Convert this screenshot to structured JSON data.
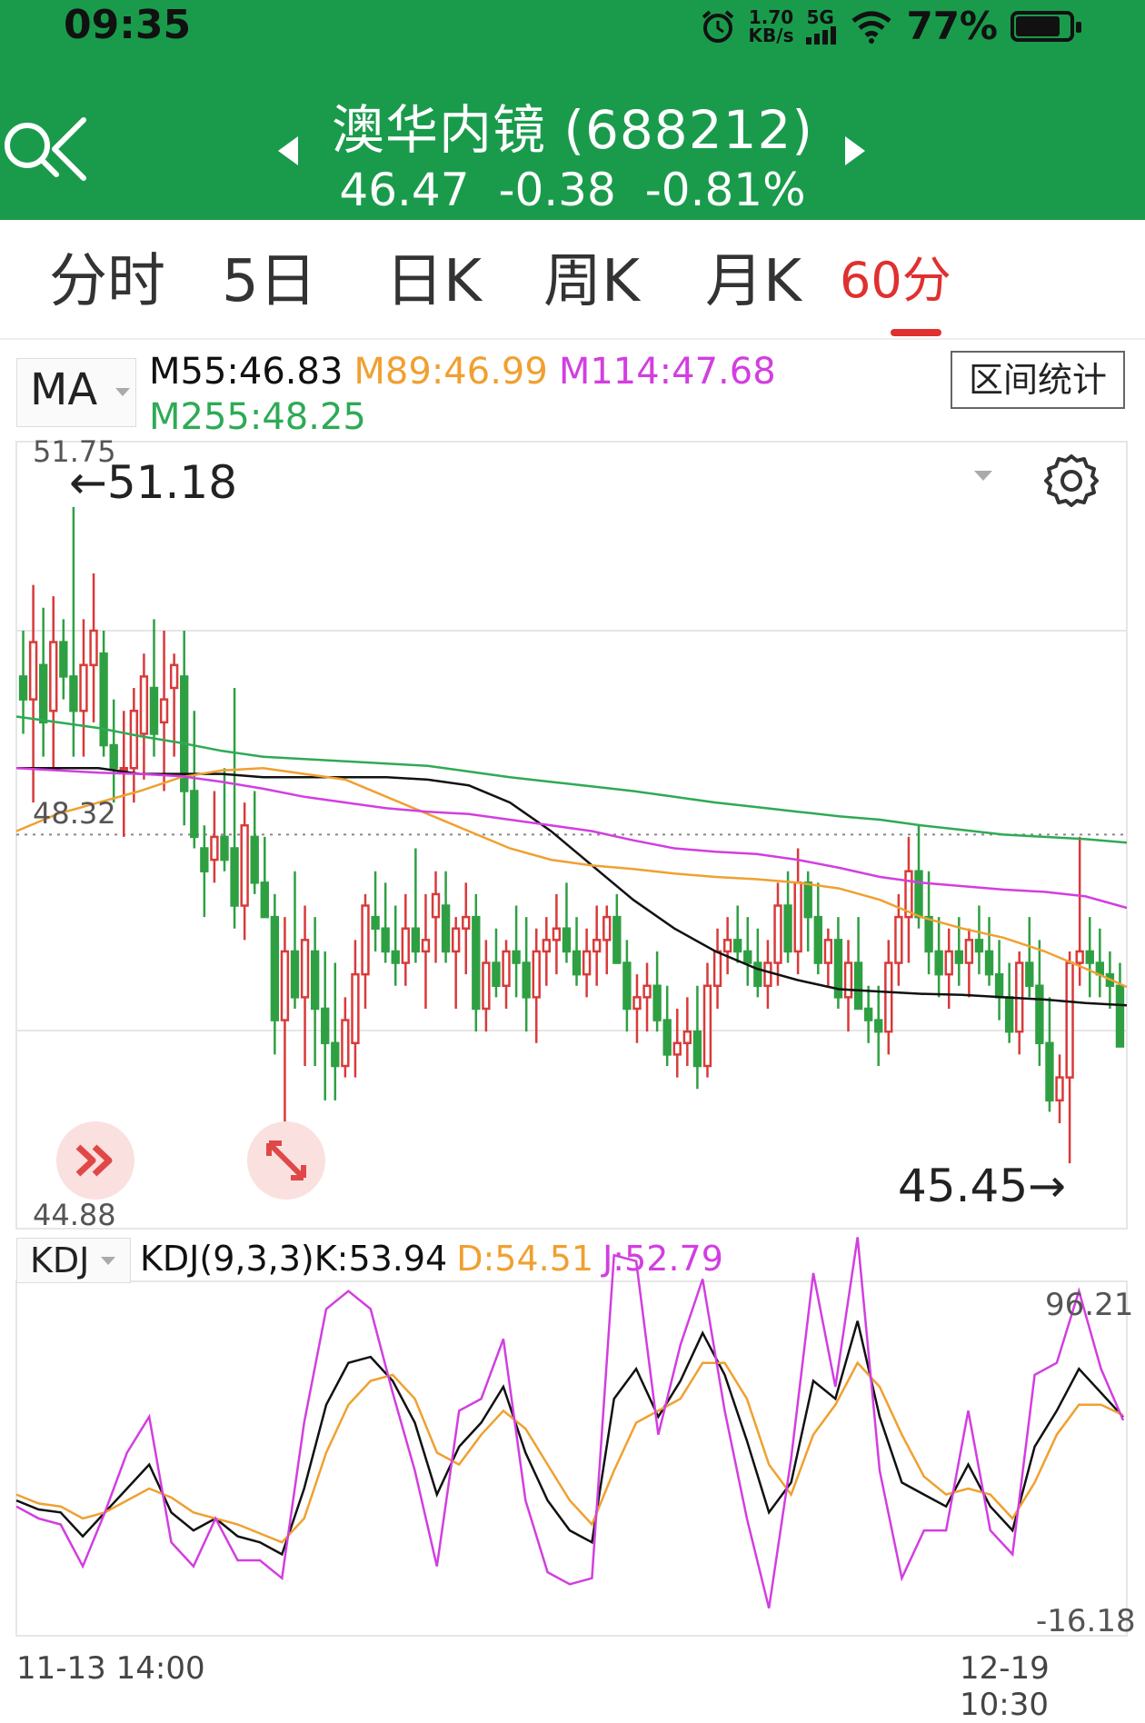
{
  "status": {
    "time": "09:35",
    "net_speed_value": "1.70",
    "net_speed_unit": "KB/s",
    "network": "5G",
    "battery": "77%",
    "battery_level": 0.77
  },
  "header": {
    "title": "澳华内镜 (688212)",
    "price": "46.47",
    "change": "-0.38",
    "change_pct": "-0.81%"
  },
  "tabs": {
    "fenshi": "分时",
    "five_day": "5日",
    "day_k": "日K",
    "week_k": "周K",
    "month_k": "月K",
    "min60": "60分"
  },
  "ma": {
    "selector": "MA",
    "m55": "M55:46.83",
    "m89": "M89:46.99",
    "m114": "M114:47.68",
    "m255": "M255:48.25",
    "range_button": "区间统计"
  },
  "price_axis": {
    "top": "51.75",
    "mid": "48.32",
    "bottom": "44.88",
    "high_marker": "←51.18",
    "low_marker": "45.45→"
  },
  "kdj": {
    "selector": "KDJ",
    "params": "KDJ(9,3,3)K:53.94",
    "d": "D:54.51",
    "j": "J:52.79",
    "top": "96.21",
    "bottom": "-16.18"
  },
  "dates": {
    "start": "11-13 14:00",
    "end": "12-19 10:30"
  },
  "colors": {
    "header_green": "#1a9b4c",
    "up_red": "#d93a3a",
    "down_green": "#2ea043",
    "m55": "#111111",
    "m89": "#f0a030",
    "m114": "#d23ee0",
    "m255": "#2eaa55"
  },
  "chart_data": {
    "type": "candlestick",
    "interval": "60分",
    "price_range": [
      44.88,
      51.75
    ],
    "candles_ohlc": [
      [
        49.7,
        50.1,
        49.2,
        49.5
      ],
      [
        49.5,
        50.5,
        48.6,
        50.0
      ],
      [
        49.8,
        50.3,
        49.0,
        49.3
      ],
      [
        49.4,
        50.4,
        48.9,
        50.0
      ],
      [
        50.0,
        50.2,
        49.5,
        49.7
      ],
      [
        49.7,
        51.18,
        49.0,
        49.4
      ],
      [
        49.4,
        50.2,
        49.0,
        49.8
      ],
      [
        49.8,
        50.6,
        49.3,
        50.1
      ],
      [
        49.9,
        50.1,
        49.0,
        49.1
      ],
      [
        49.1,
        49.5,
        48.6,
        48.9
      ],
      [
        48.9,
        49.4,
        48.3,
        48.9
      ],
      [
        48.9,
        49.6,
        48.6,
        49.4
      ],
      [
        49.2,
        49.9,
        48.8,
        49.7
      ],
      [
        49.6,
        50.2,
        49.0,
        49.2
      ],
      [
        49.3,
        50.1,
        48.7,
        49.5
      ],
      [
        49.6,
        49.9,
        49.0,
        49.8
      ],
      [
        49.7,
        50.1,
        48.4,
        48.7
      ],
      [
        48.7,
        49.4,
        48.2,
        48.3
      ],
      [
        48.2,
        48.4,
        47.6,
        48.0
      ],
      [
        48.1,
        48.7,
        47.9,
        48.3
      ],
      [
        48.3,
        48.9,
        48.0,
        48.1
      ],
      [
        48.2,
        49.6,
        47.5,
        47.7
      ],
      [
        47.7,
        48.6,
        47.4,
        48.4
      ],
      [
        48.3,
        48.7,
        47.8,
        47.9
      ],
      [
        47.9,
        48.3,
        47.6,
        47.6
      ],
      [
        47.6,
        47.8,
        46.4,
        46.7
      ],
      [
        46.7,
        47.6,
        45.7,
        47.3
      ],
      [
        47.3,
        48.0,
        46.8,
        46.9
      ],
      [
        46.9,
        47.7,
        46.3,
        47.4
      ],
      [
        47.3,
        47.6,
        46.3,
        46.8
      ],
      [
        46.8,
        47.3,
        46.0,
        46.5
      ],
      [
        46.5,
        47.2,
        46.0,
        46.3
      ],
      [
        46.3,
        46.9,
        46.2,
        46.7
      ],
      [
        46.5,
        47.4,
        46.2,
        47.1
      ],
      [
        47.1,
        47.8,
        46.8,
        47.7
      ],
      [
        47.6,
        48.0,
        47.3,
        47.5
      ],
      [
        47.5,
        47.9,
        47.2,
        47.3
      ],
      [
        47.3,
        47.7,
        47.0,
        47.2
      ],
      [
        47.2,
        47.8,
        47.0,
        47.5
      ],
      [
        47.5,
        48.2,
        47.2,
        47.3
      ],
      [
        47.3,
        47.8,
        46.8,
        47.4
      ],
      [
        47.6,
        48.0,
        47.2,
        47.8
      ],
      [
        47.7,
        48.0,
        47.2,
        47.3
      ],
      [
        47.3,
        47.6,
        46.8,
        47.5
      ],
      [
        47.5,
        47.9,
        47.1,
        47.6
      ],
      [
        47.6,
        47.8,
        46.6,
        46.8
      ],
      [
        46.8,
        47.4,
        46.6,
        47.2
      ],
      [
        47.2,
        47.5,
        46.9,
        47.0
      ],
      [
        47.0,
        47.4,
        46.8,
        47.3
      ],
      [
        47.3,
        47.7,
        46.9,
        47.2
      ],
      [
        47.2,
        47.6,
        46.6,
        46.9
      ],
      [
        46.9,
        47.5,
        46.5,
        47.3
      ],
      [
        47.3,
        47.6,
        47.0,
        47.4
      ],
      [
        47.4,
        47.8,
        47.1,
        47.5
      ],
      [
        47.5,
        47.9,
        47.2,
        47.3
      ],
      [
        47.3,
        47.6,
        47.0,
        47.1
      ],
      [
        47.1,
        47.5,
        46.9,
        47.3
      ],
      [
        47.3,
        47.7,
        47.0,
        47.4
      ],
      [
        47.4,
        47.7,
        47.1,
        47.6
      ],
      [
        47.6,
        47.8,
        47.2,
        47.2
      ],
      [
        47.2,
        47.4,
        46.6,
        46.8
      ],
      [
        46.8,
        47.1,
        46.5,
        46.9
      ],
      [
        46.9,
        47.2,
        46.6,
        47.0
      ],
      [
        47.0,
        47.3,
        46.6,
        46.7
      ],
      [
        46.7,
        47.0,
        46.3,
        46.4
      ],
      [
        46.4,
        46.8,
        46.2,
        46.5
      ],
      [
        46.5,
        46.9,
        46.3,
        46.6
      ],
      [
        46.6,
        47.0,
        46.1,
        46.3
      ],
      [
        46.3,
        47.2,
        46.2,
        47.0
      ],
      [
        47.0,
        47.5,
        46.8,
        47.3
      ],
      [
        47.3,
        47.6,
        47.1,
        47.4
      ],
      [
        47.4,
        47.7,
        47.2,
        47.3
      ],
      [
        47.3,
        47.6,
        47.0,
        47.2
      ],
      [
        47.2,
        47.5,
        46.9,
        47.0
      ],
      [
        47.0,
        47.4,
        46.8,
        47.2
      ],
      [
        47.2,
        47.9,
        47.0,
        47.7
      ],
      [
        47.7,
        48.0,
        47.2,
        47.3
      ],
      [
        47.3,
        48.2,
        47.1,
        47.9
      ],
      [
        47.9,
        48.0,
        47.3,
        47.6
      ],
      [
        47.6,
        47.9,
        47.1,
        47.2
      ],
      [
        47.2,
        47.5,
        47.0,
        47.4
      ],
      [
        47.4,
        47.6,
        46.8,
        46.9
      ],
      [
        46.9,
        47.4,
        46.6,
        47.2
      ],
      [
        47.2,
        47.6,
        46.9,
        46.8
      ],
      [
        46.8,
        47.0,
        46.5,
        46.7
      ],
      [
        46.7,
        47.0,
        46.3,
        46.6
      ],
      [
        46.6,
        47.4,
        46.4,
        47.2
      ],
      [
        47.2,
        47.8,
        47.0,
        47.6
      ],
      [
        47.6,
        48.3,
        47.2,
        48.0
      ],
      [
        48.0,
        48.4,
        47.5,
        47.6
      ],
      [
        47.6,
        48.0,
        47.1,
        47.3
      ],
      [
        47.3,
        47.6,
        46.9,
        47.1
      ],
      [
        47.1,
        47.5,
        46.8,
        47.3
      ],
      [
        47.3,
        47.6,
        47.0,
        47.2
      ],
      [
        47.2,
        47.5,
        46.9,
        47.4
      ],
      [
        47.4,
        47.7,
        47.1,
        47.3
      ],
      [
        47.3,
        47.6,
        47.0,
        47.1
      ],
      [
        47.1,
        47.4,
        46.7,
        46.9
      ],
      [
        46.9,
        47.2,
        46.5,
        46.6
      ],
      [
        46.6,
        47.3,
        46.4,
        47.2
      ],
      [
        47.2,
        47.6,
        46.9,
        47.0
      ],
      [
        47.0,
        47.4,
        46.3,
        46.5
      ],
      [
        46.5,
        46.9,
        45.9,
        46.0
      ],
      [
        46.0,
        46.4,
        45.8,
        46.2
      ],
      [
        46.2,
        47.3,
        45.45,
        47.2
      ],
      [
        47.2,
        48.3,
        47.0,
        47.3
      ],
      [
        47.3,
        47.6,
        46.9,
        47.2
      ],
      [
        47.2,
        47.5,
        46.9,
        47.1
      ],
      [
        47.1,
        47.3,
        46.8,
        47.0
      ],
      [
        47.0,
        47.2,
        46.5,
        46.47
      ]
    ],
    "ma_series": [
      {
        "name": "M55",
        "last": 46.83,
        "values": [
          48.9,
          48.9,
          48.9,
          48.85,
          48.85,
          48.85,
          48.82,
          48.82,
          48.82,
          48.82,
          48.8,
          48.75,
          48.6,
          48.35,
          48.05,
          47.75,
          47.5,
          47.3,
          47.15,
          47.05,
          46.97,
          46.95,
          46.93,
          46.92,
          46.9,
          46.88,
          46.85,
          46.83
        ]
      },
      {
        "name": "M89",
        "last": 46.99,
        "values": [
          48.35,
          48.5,
          48.6,
          48.7,
          48.82,
          48.88,
          48.9,
          48.85,
          48.8,
          48.65,
          48.5,
          48.35,
          48.2,
          48.1,
          48.05,
          48.02,
          47.98,
          47.95,
          47.93,
          47.9,
          47.85,
          47.75,
          47.6,
          47.5,
          47.42,
          47.3,
          47.15,
          46.99
        ]
      },
      {
        "name": "M114",
        "last": 47.68,
        "values": [
          48.9,
          48.88,
          48.86,
          48.85,
          48.83,
          48.78,
          48.72,
          48.65,
          48.6,
          48.55,
          48.52,
          48.5,
          48.45,
          48.4,
          48.35,
          48.27,
          48.2,
          48.17,
          48.15,
          48.1,
          48.03,
          47.95,
          47.9,
          47.87,
          47.84,
          47.82,
          47.78,
          47.68
        ]
      },
      {
        "name": "M255",
        "last": 48.25,
        "values": [
          49.35,
          49.3,
          49.25,
          49.18,
          49.12,
          49.05,
          49.0,
          48.98,
          48.96,
          48.94,
          48.92,
          48.87,
          48.82,
          48.78,
          48.74,
          48.7,
          48.65,
          48.6,
          48.56,
          48.52,
          48.48,
          48.45,
          48.4,
          48.36,
          48.32,
          48.3,
          48.28,
          48.25
        ]
      }
    ],
    "kdj_range": [
      -16.18,
      96.21
    ],
    "kdj_series": [
      {
        "name": "K",
        "last": 53.94,
        "values": [
          26,
          23,
          22,
          14,
          22,
          30,
          38,
          22,
          16,
          20,
          14,
          12,
          8,
          30,
          58,
          72,
          74,
          66,
          52,
          28,
          44,
          52,
          64,
          42,
          26,
          16,
          12,
          60,
          70,
          54,
          66,
          82,
          68,
          46,
          22,
          32,
          66,
          60,
          86,
          54,
          32,
          28,
          24,
          38,
          24,
          16,
          44,
          56,
          70,
          62,
          53.94
        ]
      },
      {
        "name": "D",
        "last": 54.51,
        "values": [
          28,
          25,
          24,
          20,
          22,
          26,
          30,
          27,
          22,
          20,
          18,
          15,
          12,
          20,
          42,
          58,
          66,
          68,
          60,
          42,
          38,
          48,
          56,
          50,
          38,
          26,
          18,
          36,
          52,
          56,
          60,
          72,
          72,
          60,
          38,
          28,
          48,
          58,
          72,
          64,
          48,
          34,
          28,
          30,
          28,
          20,
          32,
          48,
          58,
          58,
          54.51
        ]
      },
      {
        "name": "J",
        "last": 52.79,
        "values": [
          24,
          20,
          18,
          4,
          22,
          42,
          54,
          12,
          4,
          20,
          6,
          6,
          0,
          52,
          90,
          96,
          90,
          62,
          36,
          4,
          56,
          60,
          80,
          26,
          2,
          -2,
          0,
          108,
          106,
          48,
          78,
          100,
          56,
          20,
          -10,
          40,
          102,
          64,
          114,
          36,
          0,
          16,
          16,
          56,
          16,
          8,
          68,
          72,
          96,
          70,
          52.79
        ]
      }
    ]
  }
}
